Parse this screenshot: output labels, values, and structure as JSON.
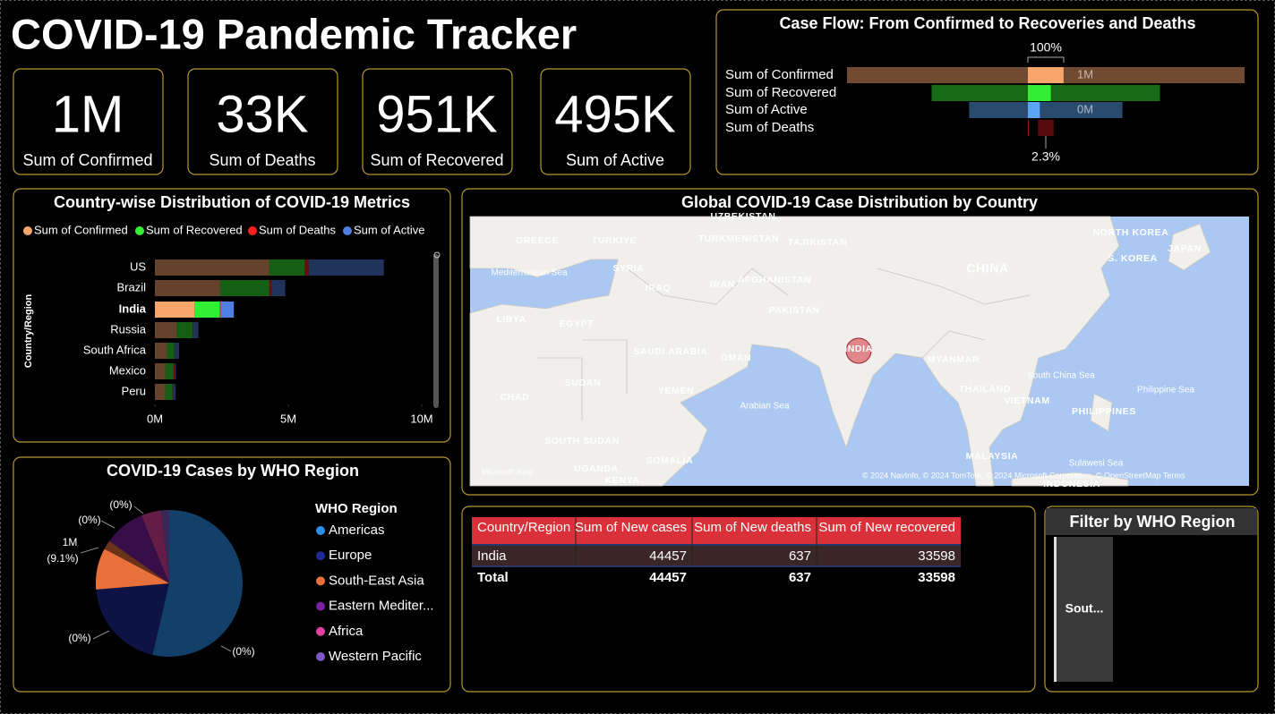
{
  "title": "COVID-19 Pandemic Tracker",
  "cards": [
    {
      "value": "1M",
      "label": "Sum of Confirmed"
    },
    {
      "value": "33K",
      "label": "Sum of Deaths"
    },
    {
      "value": "951K",
      "label": "Sum of Recovered"
    },
    {
      "value": "495K",
      "label": "Sum of Active"
    }
  ],
  "chart_data": [
    {
      "type": "funnel",
      "title": "Case Flow: From Confirmed to Recoveries and Deaths",
      "categories": [
        "Sum of Confirmed",
        "Sum of Recovered",
        "Sum of Active",
        "Sum of Deaths"
      ],
      "colors": [
        "#f9a66c",
        "#33ee33",
        "#5aa6f5",
        "#c01818"
      ],
      "values": [
        16480485,
        9468087,
        6358362,
        654036
      ],
      "highlight_values": [
        1480073,
        951166,
        495499,
        33408
      ],
      "value_labels": [
        "1M",
        null,
        "0M",
        null
      ],
      "top_label": "100%",
      "bottom_label": "2.3%"
    },
    {
      "type": "bar",
      "orientation": "horizontal",
      "stacked": true,
      "title": "Country-wise Distribution of COVID-19 Metrics",
      "y_label": "Country/Region",
      "categories": [
        "US",
        "Brazil",
        "India",
        "Russia",
        "South Africa",
        "Mexico",
        "Peru"
      ],
      "highlight": "India",
      "series": [
        {
          "name": "Sum of Confirmed",
          "color": "#f9a66c",
          "values": [
            4290259,
            2442375,
            1480073,
            816680,
            452529,
            395489,
            389717
          ]
        },
        {
          "name": "Sum of Recovered",
          "color": "#33ee33",
          "values": [
            1325804,
            1846641,
            951166,
            602249,
            274925,
            303810,
            272547
          ]
        },
        {
          "name": "Sum of Deaths",
          "color": "#ff2020",
          "values": [
            148011,
            87618,
            33408,
            13334,
            7067,
            44022,
            18418
          ]
        },
        {
          "name": "Sum of Active",
          "color": "#4f7fe0",
          "values": [
            2816444,
            508116,
            495499,
            201097,
            170537,
            47657,
            98752
          ]
        }
      ],
      "xlim": [
        0,
        10000000
      ],
      "xticks": [
        {
          "value": 0,
          "label": "0M"
        },
        {
          "value": 5000000,
          "label": "5M"
        },
        {
          "value": 10000000,
          "label": "10M"
        }
      ]
    },
    {
      "type": "pie",
      "title": "COVID-19 Cases by WHO Region",
      "legend_title": "WHO Region",
      "categories": [
        "Americas",
        "Europe",
        "South-East Asia",
        "Eastern Mediter...",
        "Africa",
        "Western Pacific"
      ],
      "colors": [
        "#2b8fe8",
        "#1f2a9a",
        "#e8703a",
        "#7a1fa0",
        "#e040a0",
        "#7e57c2"
      ],
      "values": [
        8839286,
        3299523,
        1835297,
        1490744,
        723207,
        292428
      ],
      "highlight_percent": [
        0,
        0,
        9.1,
        0,
        0,
        0
      ],
      "percent_labels": [
        "(0%)",
        "(0%)",
        "(9.1%)",
        "(0%)",
        "(0%)",
        null
      ],
      "highlight_values": [
        0,
        0,
        1480073,
        0,
        0,
        0
      ],
      "value_labels": [
        null,
        null,
        "1M",
        null,
        null,
        null
      ]
    }
  ],
  "map": {
    "title": "Global COVID-19 Case Distribution by Country",
    "labels": [
      "UZBEKISTAN",
      "GREECE",
      "TÜRKIYE",
      "TURKMENISTAN",
      "TAJIKISTAN",
      "NORTH KOREA",
      "JAPAN",
      "S. KOREA",
      "CHINA",
      "SYRIA",
      "IRAQ",
      "IRAN",
      "AFGHANISTAN",
      "PAKISTAN",
      "LIBYA",
      "EGYPT",
      "SAUDI ARABIA",
      "OMAN",
      "INDIA",
      "MYANMAR",
      "THAILAND",
      "VIETNAM",
      "PHILIPPINES",
      "SUDAN",
      "CHAD",
      "YEMEN",
      "SOUTH SUDAN",
      "SOMALIA",
      "UGANDA",
      "KENYA",
      "MALAYSIA",
      "INDONESIA"
    ],
    "seas": [
      "Mediterranean Sea",
      "Arabian Sea",
      "South China Sea",
      "Philippine Sea",
      "Sulawesi Sea"
    ],
    "provider": "Microsoft Bing",
    "attribution": "© 2024 NavInfo, © 2024 TomTom, © 2024 Microsoft Corporation, © OpenStreetMap   Terms"
  },
  "table": {
    "columns": [
      "Country/Region",
      "Sum of New cases",
      "Sum of New deaths",
      "Sum of New recovered"
    ],
    "rows": [
      [
        "India",
        44457,
        637,
        33598
      ]
    ],
    "total": [
      "Total",
      44457,
      637,
      33598
    ]
  },
  "slicer": {
    "title": "Filter by WHO Region",
    "items": [
      "Sout..."
    ]
  }
}
